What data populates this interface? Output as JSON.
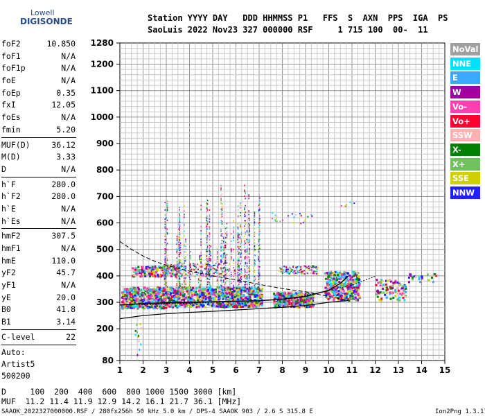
{
  "logo": {
    "top": "Lowell",
    "bottom": "DIGISONDE"
  },
  "header": {
    "line1": "Station YYYY DAY   DDD HHMMSS P1   FFS  S  AXN  PPS  IGA  PS",
    "line2": "SaoLuis 2022 Nov23 327 000000 RSF     1 715 100  00-  11"
  },
  "params_group1": [
    {
      "name": "foF2",
      "value": "10.850"
    },
    {
      "name": "foF1",
      "value": "N/A"
    },
    {
      "name": "foF1p",
      "value": "N/A"
    },
    {
      "name": "foE",
      "value": "N/A"
    },
    {
      "name": "foEp",
      "value": "0.35"
    },
    {
      "name": "fxI",
      "value": "12.05"
    },
    {
      "name": "foEs",
      "value": "N/A"
    },
    {
      "name": "fmin",
      "value": "5.20"
    }
  ],
  "params_group2": [
    {
      "name": "MUF(D)",
      "value": "36.12"
    },
    {
      "name": "M(D)",
      "value": "3.33"
    },
    {
      "name": "D",
      "value": "N/A"
    }
  ],
  "params_group3": [
    {
      "name": "h`F",
      "value": "280.0"
    },
    {
      "name": "h`F2",
      "value": "280.0"
    },
    {
      "name": "h`E",
      "value": "N/A"
    },
    {
      "name": "h`Es",
      "value": "N/A"
    }
  ],
  "params_group4": [
    {
      "name": "hmF2",
      "value": "307.5"
    },
    {
      "name": "hmF1",
      "value": "N/A"
    },
    {
      "name": "hmE",
      "value": "110.0"
    },
    {
      "name": "yF2",
      "value": "45.7"
    },
    {
      "name": "yF1",
      "value": "N/A"
    },
    {
      "name": "yE",
      "value": "20.0"
    },
    {
      "name": "B0",
      "value": "41.8"
    },
    {
      "name": "B1",
      "value": "3.14"
    }
  ],
  "clevel": {
    "name": "C-level",
    "value": "22"
  },
  "auto": {
    "line1": "Auto:",
    "line2": "Artist5",
    "line3": "500200"
  },
  "muf_table": {
    "row1": "D     100  200  400  600  800 1000 1500 3000 [km]",
    "row2": "MUF  11.2 11.4 11.9 12.9 14.2 16.1 21.7 36.1 [MHz]"
  },
  "footer": {
    "left": "SAAOK_2022327000000.RSF / 280fx256h 50 kHz 5.0 km / DPS-4 SAAOK 903 / 2.6 S 315.8 E",
    "right": "Ion2Png 1.3.17"
  },
  "legend": [
    {
      "label": "NoVal",
      "color": "#a0a0a0"
    },
    {
      "label": "NNE",
      "color": "#00e0ff"
    },
    {
      "label": "E",
      "color": "#3aa8ff"
    },
    {
      "label": "W",
      "color": "#a000a0"
    },
    {
      "label": "Vo-",
      "color": "#ff40b0"
    },
    {
      "label": "Vo+",
      "color": "#ff0030"
    },
    {
      "label": "SSW",
      "color": "#ffb0b0"
    },
    {
      "label": "X-",
      "color": "#008000"
    },
    {
      "label": "X+",
      "color": "#70c060"
    },
    {
      "label": "SSE",
      "color": "#d0d000"
    },
    {
      "label": "NNW",
      "color": "#2020ff"
    }
  ],
  "chart_data": {
    "type": "scatter",
    "title": "",
    "xlabel": "",
    "ylabel": "",
    "x_ticks": [
      1,
      2,
      3,
      4,
      5,
      6,
      7,
      8,
      9,
      10,
      11,
      12,
      13,
      14,
      15
    ],
    "y_ticks": [
      80,
      200,
      300,
      400,
      500,
      600,
      700,
      800,
      900,
      1000,
      1100,
      1200,
      1280
    ],
    "xlim": [
      1,
      15
    ],
    "ylim": [
      80,
      1280
    ],
    "x_unit": "MHz",
    "y_unit": "km",
    "traces": [
      {
        "name": "O-trace F2",
        "x": [
          1.0,
          2.0,
          3.0,
          4.0,
          5.0,
          6.0,
          7.0,
          8.0,
          9.0,
          10.0,
          10.5,
          10.85
        ],
        "y": [
          290,
          295,
          298,
          300,
          302,
          304,
          306,
          312,
          322,
          345,
          372,
          400
        ]
      },
      {
        "name": "X-trace F2",
        "x": [
          1.8,
          3,
          4,
          5,
          6,
          7,
          8,
          9,
          10,
          11,
          11.6,
          12.05
        ],
        "y": [
          290,
          294,
          297,
          300,
          303,
          306,
          312,
          325,
          345,
          365,
          385,
          400
        ]
      }
    ],
    "profile": {
      "name": "electron density profile",
      "x": [
        1.0,
        2,
        3,
        4,
        5,
        6,
        7,
        8,
        9,
        10,
        10.85
      ],
      "y": [
        238,
        250,
        257,
        262,
        266,
        271,
        276,
        281,
        288,
        300,
        307
      ]
    },
    "topside": {
      "name": "topside profile",
      "x": [
        1.0,
        1.5,
        2,
        2.5,
        3,
        4,
        5,
        6,
        7,
        8,
        9,
        10,
        10.85
      ],
      "y": [
        530,
        500,
        475,
        455,
        440,
        418,
        400,
        385,
        368,
        352,
        340,
        322,
        307
      ]
    }
  }
}
